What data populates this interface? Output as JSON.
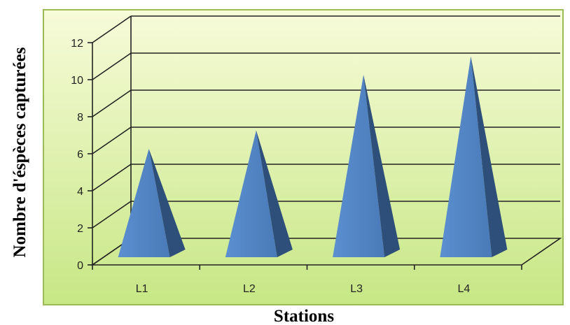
{
  "chart_data": {
    "type": "bar",
    "style": "3d-pyramid",
    "categories": [
      "L1",
      "L2",
      "L3",
      "L4"
    ],
    "series": [
      {
        "values": [
          6,
          7,
          10,
          11
        ]
      }
    ],
    "xlabel": "Stations",
    "ylabel": "Nombre d'éspèces capturées",
    "ylim": [
      0,
      12
    ],
    "yticks": [
      0,
      2,
      4,
      6,
      8,
      10,
      12
    ],
    "grid": true,
    "legend": "none",
    "colors": {
      "bar_front": "#4f81bd",
      "bar_side": "#2d4f7a",
      "plot_background_top": "#f7fbd9",
      "plot_background_bottom": "#c7e785",
      "frame": "#9bbb59",
      "gridline": "#222222"
    }
  }
}
